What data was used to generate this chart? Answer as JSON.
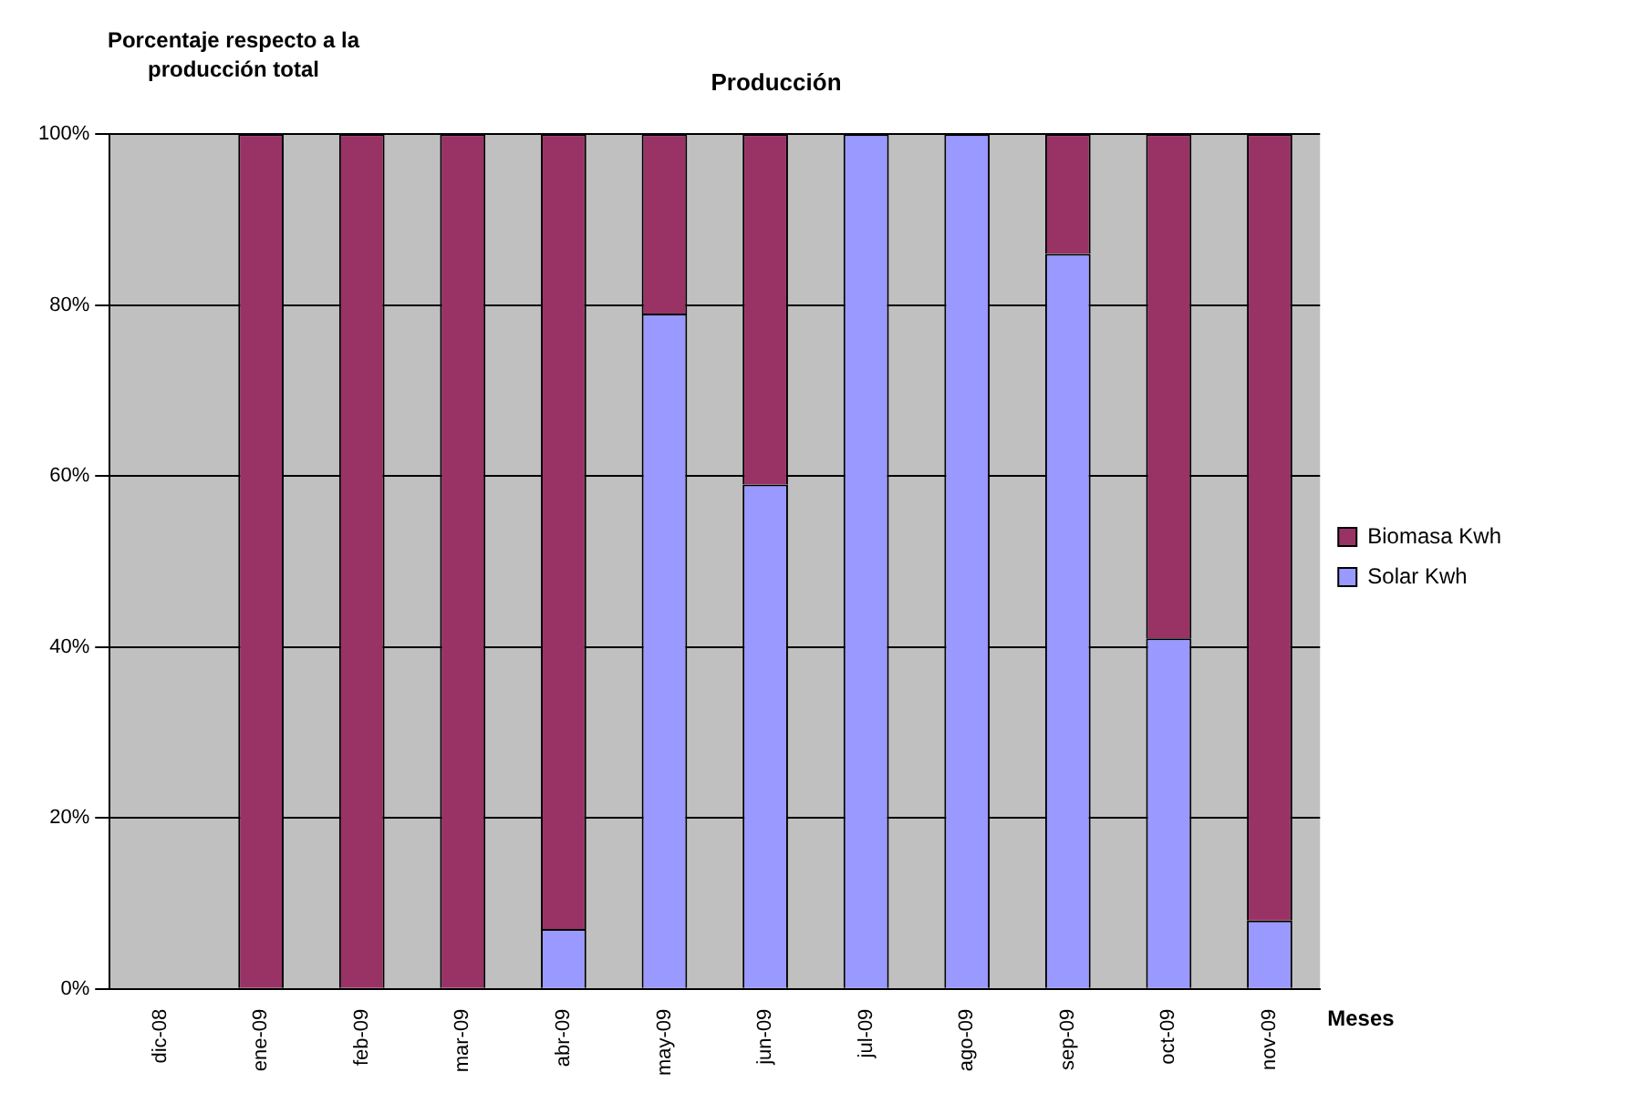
{
  "chart_data": {
    "type": "bar",
    "title": "Producción",
    "ylabel": "Porcentaje respecto a la producción total",
    "xlabel": "Meses",
    "stacked": true,
    "categories": [
      "dic-08",
      "ene-09",
      "feb-09",
      "mar-09",
      "abr-09",
      "may-09",
      "jun-09",
      "jul-09",
      "ago-09",
      "sep-09",
      "oct-09",
      "nov-09"
    ],
    "series": [
      {
        "name": "Solar Kwh",
        "color": "#9999ff",
        "values": [
          0,
          0,
          0,
          0,
          7,
          79,
          59,
          100,
          100,
          86,
          41,
          8
        ]
      },
      {
        "name": "Biomasa Kwh",
        "color": "#993366",
        "values": [
          0,
          100,
          100,
          100,
          93,
          21,
          41,
          0,
          0,
          14,
          59,
          92
        ]
      }
    ],
    "ylim": [
      0,
      100
    ],
    "yticks": [
      {
        "value": 0,
        "label": "0%"
      },
      {
        "value": 20,
        "label": "20%"
      },
      {
        "value": 40,
        "label": "40%"
      },
      {
        "value": 60,
        "label": "60%"
      },
      {
        "value": 80,
        "label": "80%"
      },
      {
        "value": 100,
        "label": "100%"
      }
    ],
    "grid": "y",
    "legend": "right"
  }
}
